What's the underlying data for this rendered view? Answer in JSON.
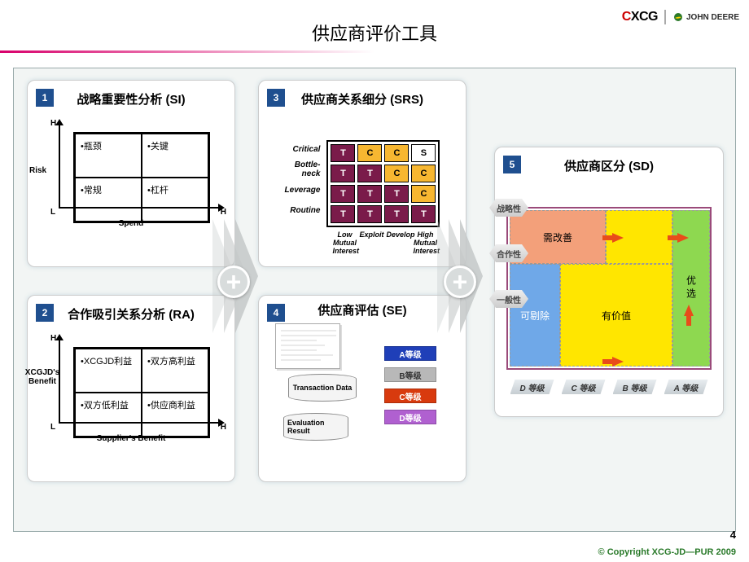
{
  "header": {
    "logo_xcg_pre": "C",
    "logo_xcg": "XCG",
    "logo_jd": "JOHN DEERE"
  },
  "title": "供应商评价工具",
  "page_number": "4",
  "copyright": "© Copyright XCG-JD—PUR 2009",
  "panels": {
    "p1": {
      "num": "1",
      "title": "战略重要性分析 (SI)",
      "ylabel": "Risk",
      "xlabel": "Spend",
      "H": "H",
      "L": "L",
      "cells": [
        "•瓶颈",
        "•关键",
        "•常规",
        "•杠杆"
      ]
    },
    "p2": {
      "num": "2",
      "title": "合作吸引关系分析 (RA)",
      "ylabel": "XCGJD's Benefit",
      "xlabel": "Supplier's Benefit",
      "H": "H",
      "L": "L",
      "cells": [
        "•XCGJD利益",
        "•双方高利益",
        "•双方低利益",
        "•供应商利益"
      ]
    },
    "p3": {
      "num": "3",
      "title": "供应商关系细分 (SRS)",
      "row_labels": [
        "Critical",
        "Bottle-\nneck",
        "Leverage",
        "Routine"
      ],
      "col_labels": [
        "Low Mutual Interest",
        "Exploit",
        "Develop",
        "High Mutual Interest"
      ],
      "grid": [
        [
          "T",
          "C",
          "C",
          "S"
        ],
        [
          "T",
          "T",
          "C",
          "C"
        ],
        [
          "T",
          "T",
          "T",
          "C"
        ],
        [
          "T",
          "T",
          "T",
          "T"
        ]
      ],
      "colors": {
        "T": "#7a1b4a",
        "C": "#f7b731",
        "S": "#ffffff"
      }
    },
    "p4": {
      "num": "4",
      "title": "供应商评估 (SE)",
      "grades": [
        {
          "label": "A等级",
          "bg": "#1f3fb8"
        },
        {
          "label": "B等级",
          "bg": "#b8b8b8"
        },
        {
          "label": "C等级",
          "bg": "#d83a0e"
        },
        {
          "label": "D等级",
          "bg": "#b060d0"
        }
      ],
      "cyl1": "Transaction Data",
      "cyl2": "Evaluation Result"
    },
    "p5": {
      "num": "5",
      "title": "供应商区分 (SD)",
      "ylabels": [
        "战略性",
        "合作性",
        "一般性"
      ],
      "xlabels": [
        "D 等级",
        "C 等级",
        "B 等级",
        "A 等级"
      ],
      "boxes": {
        "improve": {
          "label": "需改善",
          "bg": "#f3a07a"
        },
        "removable": {
          "label": "可剔除",
          "bg": "#6fa8e8"
        },
        "valuable": {
          "label": "有价值",
          "bg": "#ffe600"
        },
        "preferred": {
          "label": "优选",
          "bg": "#8ed850"
        }
      }
    }
  }
}
